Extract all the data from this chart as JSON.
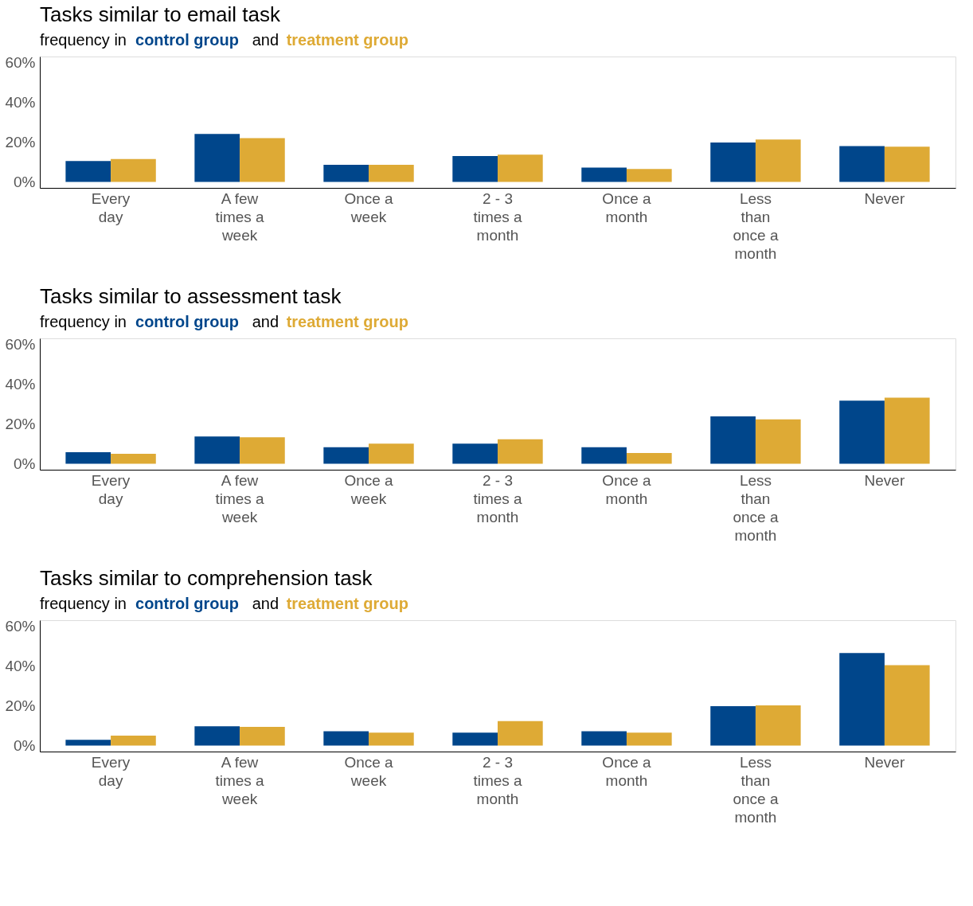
{
  "chart_data": [
    {
      "type": "bar",
      "title": "Tasks similar to email task",
      "annotations": [
        "frequency in",
        "and"
      ],
      "categories": [
        "Every day",
        "A few times a week",
        "Once a week",
        "2 - 3 times a month",
        "Once a month",
        "Less than once a month",
        "Never"
      ],
      "series": [
        {
          "name": "control group",
          "color": "#00468b",
          "values": [
            10.5,
            24.1,
            8.6,
            13,
            7.2,
            19.8,
            18
          ]
        },
        {
          "name": "treatment group",
          "color": "#deaa35",
          "values": [
            11.5,
            22,
            8.6,
            13.7,
            6.5,
            21.3,
            17.7
          ]
        }
      ],
      "ylim": [
        -3,
        63
      ],
      "yticks": [
        {
          "value": 0,
          "label": "0%"
        },
        {
          "value": 20,
          "label": "20%"
        },
        {
          "value": 40,
          "label": "40%"
        },
        {
          "value": 60,
          "label": "60%"
        }
      ],
      "grid": false,
      "legend": false
    },
    {
      "type": "bar",
      "title": "Tasks similar to assessment task",
      "annotations": [
        "frequency in",
        "and"
      ],
      "categories": [
        "Every day",
        "A few times a week",
        "Once a week",
        "2 - 3 times a month",
        "Once a month",
        "Less than once a month",
        "Never"
      ],
      "series": [
        {
          "name": "control group",
          "color": "#00468b",
          "values": [
            5.8,
            13.7,
            8.3,
            10.1,
            8.3,
            23.8,
            31.7
          ]
        },
        {
          "name": "treatment group",
          "color": "#deaa35",
          "values": [
            5,
            13.3,
            10.1,
            12.3,
            5.4,
            22.3,
            33.2
          ]
        }
      ],
      "ylim": [
        -3,
        63
      ],
      "yticks": [
        {
          "value": 0,
          "label": "0%"
        },
        {
          "value": 20,
          "label": "20%"
        },
        {
          "value": 40,
          "label": "40%"
        },
        {
          "value": 60,
          "label": "60%"
        }
      ],
      "grid": false,
      "legend": false
    },
    {
      "type": "bar",
      "title": "Tasks similar to comprehension task",
      "annotations": [
        "frequency in",
        "and"
      ],
      "categories": [
        "Every day",
        "A few times a week",
        "Once a week",
        "2 - 3 times a month",
        "Once a month",
        "Less than once a month",
        "Never"
      ],
      "series": [
        {
          "name": "control group",
          "color": "#00468b",
          "values": [
            2.9,
            9.7,
            7.2,
            6.5,
            7.2,
            19.8,
            46.5
          ]
        },
        {
          "name": "treatment group",
          "color": "#deaa35",
          "values": [
            5,
            9.4,
            6.5,
            12.3,
            6.5,
            20.2,
            40.4
          ]
        }
      ],
      "ylim": [
        -3,
        63
      ],
      "yticks": [
        {
          "value": 0,
          "label": "0%"
        },
        {
          "value": 20,
          "label": "20%"
        },
        {
          "value": 40,
          "label": "40%"
        },
        {
          "value": 60,
          "label": "60%"
        }
      ],
      "grid": false,
      "legend": false
    }
  ]
}
